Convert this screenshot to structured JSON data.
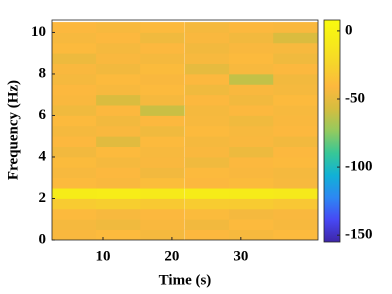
{
  "chart_data": {
    "type": "heatmap",
    "xlabel": "Time (s)",
    "ylabel": "Frequency (Hz)",
    "x": [
      5.8,
      12.2,
      18.6,
      25.1,
      31.5,
      37.9
    ],
    "y": [
      0.25,
      0.75,
      1.25,
      1.75,
      2.25,
      2.75,
      3.25,
      3.75,
      4.25,
      4.75,
      5.25,
      5.75,
      6.25,
      6.75,
      7.25,
      7.75,
      8.25,
      8.75,
      9.25,
      9.75,
      10.25
    ],
    "values": [
      [
        -42,
        -40,
        -44,
        -41,
        -43,
        -40
      ],
      [
        -44,
        -46,
        -42,
        -45,
        -40,
        -43
      ],
      [
        -40,
        -43,
        -41,
        -39,
        -44,
        -42
      ],
      [
        -30,
        -28,
        -31,
        -29,
        -30,
        -32
      ],
      [
        -6,
        -5,
        -8,
        -6,
        -7,
        -9
      ],
      [
        -40,
        -42,
        -38,
        -41,
        -39,
        -43
      ],
      [
        -43,
        -41,
        -45,
        -40,
        -42,
        -44
      ],
      [
        -39,
        -44,
        -42,
        -46,
        -41,
        -40
      ],
      [
        -45,
        -40,
        -43,
        -42,
        -47,
        -41
      ],
      [
        -41,
        -52,
        -40,
        -44,
        -42,
        -45
      ],
      [
        -44,
        -42,
        -46,
        -40,
        -43,
        -41
      ],
      [
        -40,
        -45,
        -41,
        -43,
        -46,
        -42
      ],
      [
        -46,
        -41,
        -60,
        -44,
        -41,
        -43
      ],
      [
        -42,
        -55,
        -44,
        -41,
        -45,
        -40
      ],
      [
        -41,
        -43,
        -40,
        -46,
        -42,
        -44
      ],
      [
        -44,
        -40,
        -42,
        -41,
        -62,
        -45
      ],
      [
        -42,
        -45,
        -39,
        -50,
        -43,
        -41
      ],
      [
        -47,
        -42,
        -44,
        -43,
        -40,
        -46
      ],
      [
        -40,
        -44,
        -41,
        -45,
        -42,
        -43
      ],
      [
        -43,
        -41,
        -46,
        -42,
        -45,
        -55
      ],
      [
        -41,
        -43,
        -40,
        -44,
        -41,
        -42
      ]
    ],
    "xlim": [
      2.6,
      41.2
    ],
    "xticks": [
      10,
      20,
      30
    ],
    "ylim": [
      0,
      10.6
    ],
    "yticks": [
      0,
      2,
      4,
      6,
      8,
      10
    ],
    "clim": [
      -155,
      8
    ],
    "cticks": [
      0,
      -50,
      -100,
      -150
    ],
    "colormap": [
      "#3e26a8",
      "#4748f4",
      "#2d87f3",
      "#11b1d6",
      "#37c797",
      "#93ca5f",
      "#d5bd3f",
      "#fcb83e",
      "#f6d42b",
      "#f6ea1a",
      "#f9fb0e"
    ]
  }
}
